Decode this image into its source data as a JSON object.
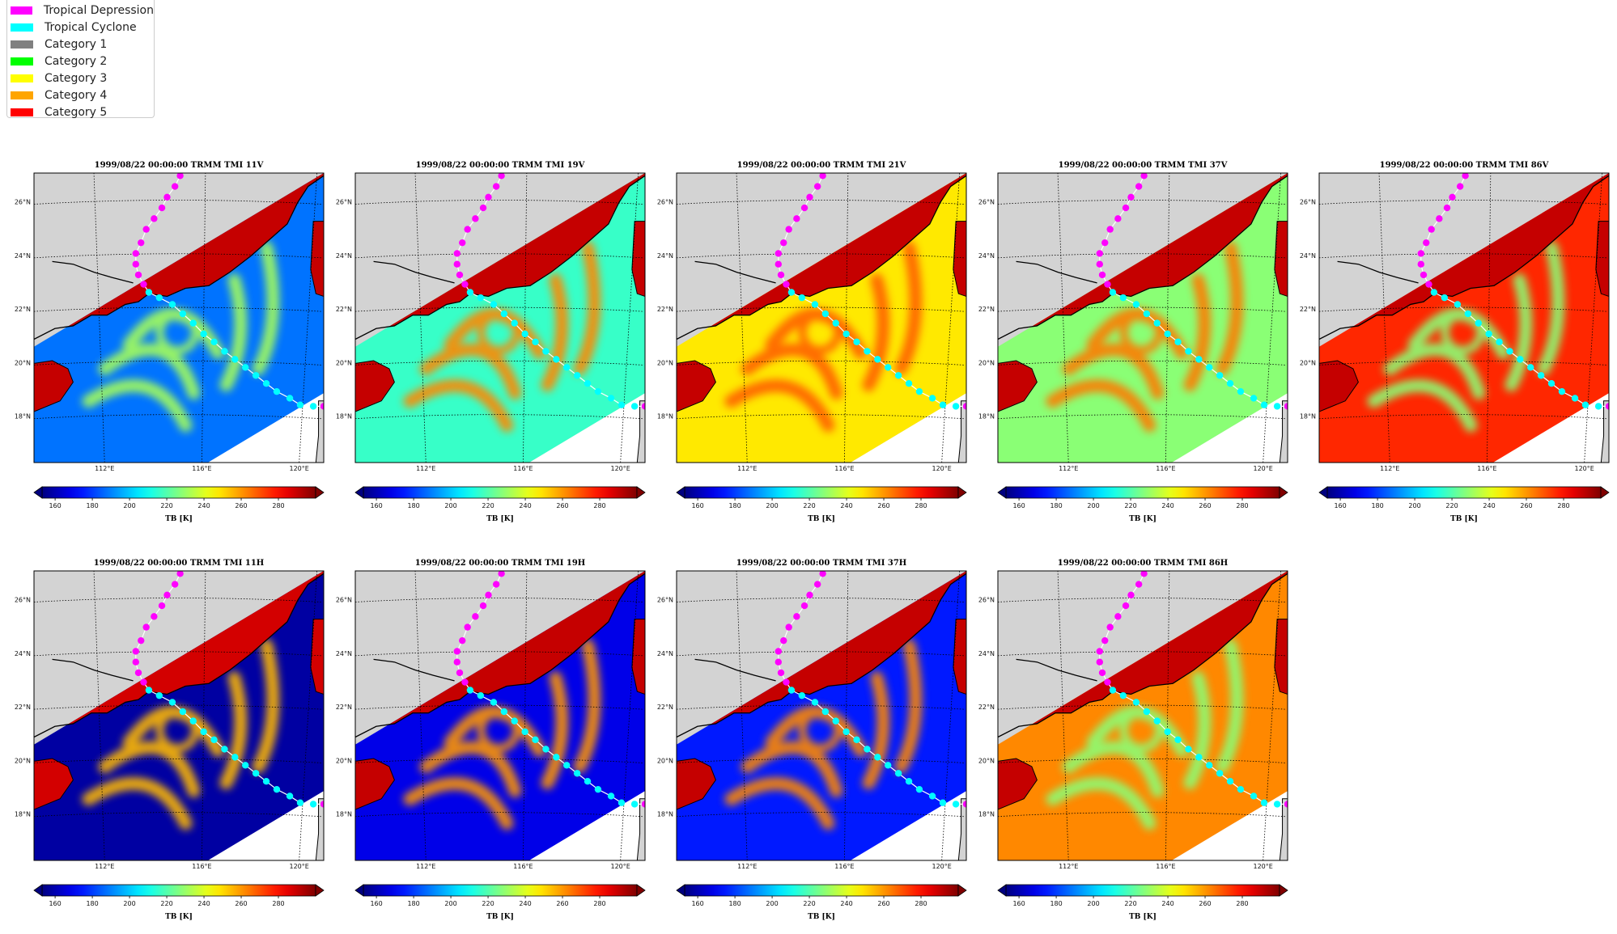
{
  "legend": {
    "items": [
      {
        "label": "Tropical Depression",
        "color": "#ff00ff"
      },
      {
        "label": "Tropical Cyclone",
        "color": "#00ffff"
      },
      {
        "label": "Category 1",
        "color": "#808080"
      },
      {
        "label": "Category 2",
        "color": "#00ff00"
      },
      {
        "label": "Category 3",
        "color": "#ffff00"
      },
      {
        "label": "Category 4",
        "color": "#ffa500"
      },
      {
        "label": "Category 5",
        "color": "#ff0000"
      }
    ]
  },
  "chart_data": [
    {
      "type": "heatmap",
      "title": "1999/08/22 00:00:00  TRMM TMI 11V",
      "base_tb": 188,
      "storm_tb": 232,
      "land_tb": 290,
      "clabel": "TB [K]"
    },
    {
      "type": "heatmap",
      "title": "1999/08/22 00:00:00  TRMM TMI 19V",
      "base_tb": 216,
      "storm_tb": 262,
      "land_tb": 290,
      "clabel": "TB [K]"
    },
    {
      "type": "heatmap",
      "title": "1999/08/22 00:00:00  TRMM TMI 21V",
      "base_tb": 248,
      "storm_tb": 268,
      "land_tb": 290,
      "clabel": "TB [K]"
    },
    {
      "type": "heatmap",
      "title": "1999/08/22 00:00:00  TRMM TMI 37V",
      "base_tb": 228,
      "storm_tb": 264,
      "land_tb": 290,
      "clabel": "TB [K]"
    },
    {
      "type": "heatmap",
      "title": "1999/08/22 00:00:00  TRMM TMI 86V",
      "base_tb": 276,
      "storm_tb": 228,
      "land_tb": 290,
      "clabel": "TB [K]"
    },
    {
      "type": "heatmap",
      "title": "1999/08/22 00:00:00  TRMM TMI 11H",
      "base_tb": 158,
      "storm_tb": 255,
      "land_tb": 288,
      "clabel": "TB [K]"
    },
    {
      "type": "heatmap",
      "title": "1999/08/22 00:00:00  TRMM TMI 19H",
      "base_tb": 168,
      "storm_tb": 260,
      "land_tb": 290,
      "clabel": "TB [K]"
    },
    {
      "type": "heatmap",
      "title": "1999/08/22 00:00:00  TRMM TMI 37H",
      "base_tb": 175,
      "storm_tb": 262,
      "land_tb": 290,
      "clabel": "TB [K]"
    },
    {
      "type": "heatmap",
      "title": "1999/08/22 00:00:00  TRMM TMI 86H",
      "base_tb": 262,
      "storm_tb": 228,
      "land_tb": 290,
      "clabel": "TB [K]"
    }
  ],
  "map": {
    "lat_labels": [
      "18°N",
      "20°N",
      "22°N",
      "24°N",
      "26°N"
    ],
    "lon_labels": [
      "112°E",
      "116°E",
      "120°E"
    ],
    "ocean_blank": "#ffffff",
    "land_grey": "#d3d3d3"
  },
  "colorbar": {
    "ticks": [
      "160",
      "180",
      "200",
      "220",
      "240",
      "260",
      "280"
    ],
    "range": [
      153,
      300
    ]
  },
  "track": {
    "points_lonlat": [
      [
        115.1,
        27.0
      ],
      [
        114.9,
        26.6
      ],
      [
        114.6,
        26.2
      ],
      [
        114.4,
        25.8
      ],
      [
        114.1,
        25.4
      ],
      [
        113.8,
        25.0
      ],
      [
        113.6,
        24.5
      ],
      [
        113.4,
        24.1
      ],
      [
        113.4,
        23.7
      ],
      [
        113.5,
        23.3
      ],
      [
        113.7,
        22.95
      ],
      [
        113.9,
        22.65
      ],
      [
        114.3,
        22.45
      ],
      [
        114.8,
        22.2
      ],
      [
        115.2,
        21.85
      ],
      [
        115.6,
        21.5
      ],
      [
        116.0,
        21.1
      ],
      [
        116.4,
        20.8
      ],
      [
        116.8,
        20.45
      ],
      [
        117.2,
        20.15
      ],
      [
        117.6,
        19.85
      ],
      [
        118.0,
        19.55
      ],
      [
        118.4,
        19.25
      ],
      [
        118.8,
        18.95
      ],
      [
        119.3,
        18.7
      ],
      [
        119.7,
        18.45
      ],
      [
        120.2,
        18.4
      ],
      [
        120.6,
        18.4
      ]
    ],
    "categories": [
      "TD",
      "TD",
      "TD",
      "TD",
      "TD",
      "TD",
      "TD",
      "TD",
      "TD",
      "TD",
      "TD",
      "TC",
      "TC",
      "TC",
      "TC",
      "TC",
      "TC",
      "TC",
      "TC",
      "TC",
      "TC",
      "TC",
      "TC",
      "TC",
      "TC",
      "TC",
      "TC",
      "TD"
    ]
  }
}
